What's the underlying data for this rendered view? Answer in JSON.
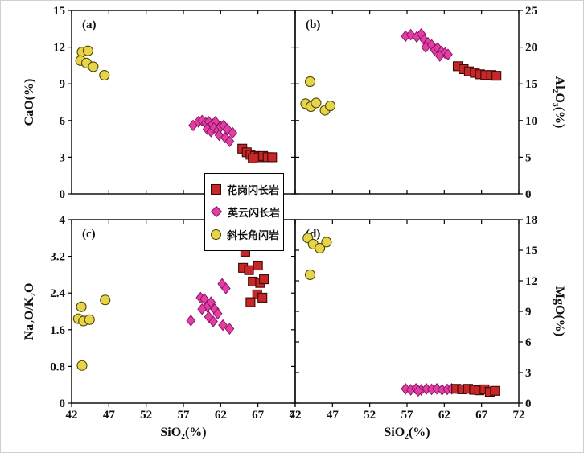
{
  "figure": {
    "x_axis": {
      "label": "SiO₂(%)",
      "min": 42,
      "max": 72,
      "ticks": [
        42,
        47,
        52,
        57,
        62,
        67,
        72
      ]
    },
    "series": [
      {
        "key": "granodiorite",
        "name": "花岗闪长岩",
        "marker": "square",
        "fill": "#c62828",
        "stroke": "#3d0606"
      },
      {
        "key": "tonalite",
        "name": "英云闪长岩",
        "marker": "diamond",
        "fill": "#e23fa4",
        "stroke": "#8d1464"
      },
      {
        "key": "amphibolite",
        "name": "斜长角闪岩",
        "marker": "circle",
        "fill": "#e8d44a",
        "stroke": "#4a4500"
      }
    ]
  },
  "chart_data": [
    {
      "panel": "a",
      "type": "scatter",
      "title": "(a)",
      "xlabel": "SiO₂(%)",
      "ylabel": "CaO(%)",
      "xlim": [
        42,
        72
      ],
      "ylim": [
        0,
        15
      ],
      "xticks": [
        42,
        47,
        52,
        57,
        62,
        67,
        72
      ],
      "yticks": [
        0,
        3,
        6,
        9,
        12,
        15
      ],
      "series": [
        {
          "key": "amphibolite",
          "points": [
            [
              43.4,
              11.6
            ],
            [
              44.2,
              11.7
            ],
            [
              43.2,
              10.9
            ],
            [
              44.0,
              10.7
            ],
            [
              44.9,
              10.4
            ],
            [
              46.4,
              9.7
            ]
          ]
        },
        {
          "key": "tonalite",
          "points": [
            [
              58.3,
              5.6
            ],
            [
              59.0,
              5.9
            ],
            [
              59.5,
              6.0
            ],
            [
              60.0,
              5.8
            ],
            [
              60.4,
              5.9
            ],
            [
              60.9,
              5.7
            ],
            [
              61.3,
              5.9
            ],
            [
              60.2,
              5.3
            ],
            [
              60.7,
              5.1
            ],
            [
              61.1,
              5.4
            ],
            [
              61.6,
              5.2
            ],
            [
              62.0,
              5.5
            ],
            [
              62.4,
              5.6
            ],
            [
              62.9,
              5.3
            ],
            [
              61.8,
              4.8
            ],
            [
              62.6,
              4.6
            ],
            [
              63.2,
              4.3
            ],
            [
              63.6,
              5.0
            ]
          ]
        },
        {
          "key": "granodiorite",
          "points": [
            [
              64.9,
              3.7
            ],
            [
              65.5,
              3.4
            ],
            [
              66.0,
              3.2
            ],
            [
              66.6,
              3.1
            ],
            [
              67.1,
              3.0
            ],
            [
              67.7,
              3.1
            ],
            [
              68.3,
              3.0
            ],
            [
              68.9,
              3.0
            ],
            [
              66.3,
              2.9
            ]
          ]
        }
      ]
    },
    {
      "panel": "b",
      "type": "scatter",
      "title": "(b)",
      "xlabel": "SiO₂(%)",
      "ylabel": "Al₂O₃(%)",
      "xlim": [
        42,
        72
      ],
      "ylim": [
        0,
        25
      ],
      "xticks": [
        42,
        47,
        52,
        57,
        62,
        67,
        72
      ],
      "yticks": [
        0,
        5,
        10,
        15,
        20,
        25
      ],
      "series": [
        {
          "key": "amphibolite",
          "points": [
            [
              44.0,
              15.3
            ],
            [
              43.4,
              12.3
            ],
            [
              44.1,
              11.9
            ],
            [
              44.8,
              12.4
            ],
            [
              46.0,
              11.4
            ],
            [
              46.7,
              12.0
            ]
          ]
        },
        {
          "key": "tonalite",
          "points": [
            [
              56.8,
              21.5
            ],
            [
              57.5,
              21.7
            ],
            [
              58.3,
              21.4
            ],
            [
              58.9,
              21.8
            ],
            [
              59.3,
              21.0
            ],
            [
              59.8,
              20.6
            ],
            [
              59.5,
              20.0
            ],
            [
              60.3,
              20.3
            ],
            [
              60.7,
              19.6
            ],
            [
              61.1,
              19.9
            ],
            [
              61.6,
              19.4
            ],
            [
              62.1,
              19.2
            ],
            [
              61.4,
              18.8
            ],
            [
              62.5,
              19.0
            ]
          ]
        },
        {
          "key": "granodiorite",
          "points": [
            [
              63.8,
              17.4
            ],
            [
              64.6,
              17.0
            ],
            [
              65.3,
              16.7
            ],
            [
              66.1,
              16.5
            ],
            [
              66.8,
              16.3
            ],
            [
              67.5,
              16.2
            ],
            [
              68.3,
              16.2
            ],
            [
              69.0,
              16.1
            ]
          ]
        }
      ]
    },
    {
      "panel": "c",
      "type": "scatter",
      "title": "(c)",
      "xlabel": "SiO₂(%)",
      "ylabel": "Na₂O/K₂O",
      "xlim": [
        42,
        72
      ],
      "ylim": [
        0,
        4
      ],
      "xticks": [
        42,
        47,
        52,
        57,
        62,
        67,
        72
      ],
      "yticks": [
        0,
        0.8,
        1.6,
        2.4,
        3.2,
        4
      ],
      "series": [
        {
          "key": "amphibolite",
          "points": [
            [
              43.3,
              2.1
            ],
            [
              42.9,
              1.84
            ],
            [
              43.6,
              1.79
            ],
            [
              44.4,
              1.82
            ],
            [
              46.5,
              2.25
            ],
            [
              43.4,
              0.82
            ]
          ]
        },
        {
          "key": "tonalite",
          "points": [
            [
              58.0,
              1.8
            ],
            [
              59.3,
              2.3
            ],
            [
              59.8,
              2.27
            ],
            [
              60.2,
              2.1
            ],
            [
              60.7,
              2.2
            ],
            [
              61.2,
              2.05
            ],
            [
              61.6,
              1.95
            ],
            [
              61.0,
              1.78
            ],
            [
              62.2,
              2.6
            ],
            [
              62.7,
              2.5
            ],
            [
              62.3,
              1.7
            ],
            [
              63.2,
              1.62
            ],
            [
              60.4,
              1.88
            ],
            [
              59.5,
              2.05
            ]
          ]
        },
        {
          "key": "granodiorite",
          "points": [
            [
              65.3,
              3.3
            ],
            [
              65.0,
              2.95
            ],
            [
              65.8,
              2.9
            ],
            [
              67.0,
              3.0
            ],
            [
              66.3,
              2.65
            ],
            [
              67.3,
              2.62
            ],
            [
              67.8,
              2.7
            ],
            [
              66.9,
              2.37
            ],
            [
              67.6,
              2.3
            ],
            [
              66.0,
              2.2
            ]
          ]
        }
      ]
    },
    {
      "panel": "d",
      "type": "scatter",
      "title": "(d)",
      "xlabel": "SiO₂(%)",
      "ylabel": "MgO(%)",
      "xlim": [
        42,
        72
      ],
      "ylim": [
        0,
        18
      ],
      "xticks": [
        42,
        47,
        52,
        57,
        62,
        67,
        72
      ],
      "yticks": [
        0,
        3,
        6,
        9,
        12,
        15,
        18
      ],
      "series": [
        {
          "key": "amphibolite",
          "points": [
            [
              43.7,
              16.2
            ],
            [
              44.4,
              15.6
            ],
            [
              45.3,
              15.2
            ],
            [
              46.2,
              15.8
            ],
            [
              44.0,
              12.6
            ]
          ]
        },
        {
          "key": "tonalite",
          "points": [
            [
              56.8,
              1.4
            ],
            [
              57.5,
              1.3
            ],
            [
              58.2,
              1.4
            ],
            [
              58.9,
              1.3
            ],
            [
              59.6,
              1.4
            ],
            [
              60.3,
              1.35
            ],
            [
              61.0,
              1.4
            ],
            [
              61.7,
              1.3
            ],
            [
              62.4,
              1.35
            ],
            [
              63.0,
              1.4
            ],
            [
              58.5,
              1.2
            ]
          ]
        },
        {
          "key": "granodiorite",
          "points": [
            [
              63.6,
              1.4
            ],
            [
              64.4,
              1.35
            ],
            [
              65.2,
              1.4
            ],
            [
              66.0,
              1.3
            ],
            [
              66.7,
              1.25
            ],
            [
              67.4,
              1.35
            ],
            [
              68.1,
              1.1
            ],
            [
              68.8,
              1.2
            ]
          ]
        }
      ]
    }
  ]
}
